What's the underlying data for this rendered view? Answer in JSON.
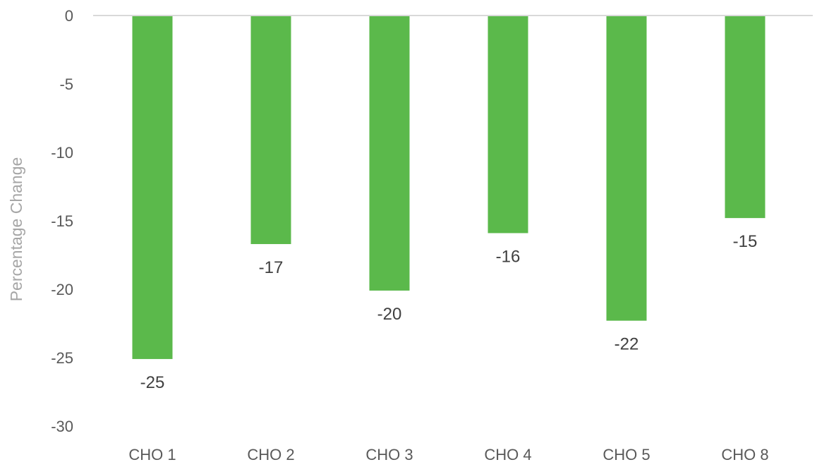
{
  "chart_data": {
    "type": "bar",
    "title": "",
    "xlabel": "",
    "ylabel": "Percentage Change",
    "categories": [
      "CHO 1",
      "CHO 2",
      "CHO 3",
      "CHO 4",
      "CHO 5",
      "CHO 8"
    ],
    "values": [
      -25.1,
      -16.7,
      -20.1,
      -15.9,
      -22.3,
      -14.8
    ],
    "data_labels": [
      "-25",
      "-17",
      "-20",
      "-16",
      "-22",
      "-15"
    ],
    "ylim": [
      -30,
      0
    ],
    "yticks": [
      0,
      -5,
      -10,
      -15,
      -20,
      -25,
      -30
    ],
    "ytick_labels": [
      "0",
      "-5",
      "-10",
      "-15",
      "-20",
      "-25",
      "-30"
    ],
    "grid": false,
    "legend": "none",
    "bar_color": "#5bb94b",
    "axis_color": "#d9d9d9"
  }
}
